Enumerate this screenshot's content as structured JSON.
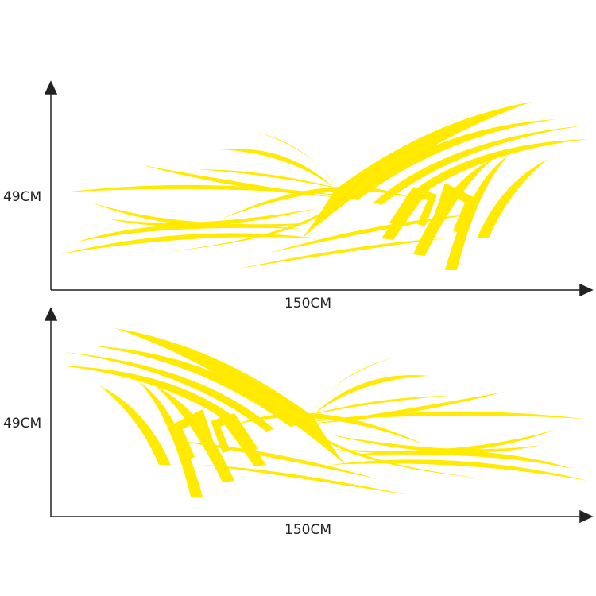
{
  "decal_color": "#ffea00",
  "axis_color": "#222222",
  "top_panel": {
    "height_label": "49CM",
    "width_label": "150CM"
  },
  "bottom_panel": {
    "height_label": "49CM",
    "width_label": "150CM"
  }
}
